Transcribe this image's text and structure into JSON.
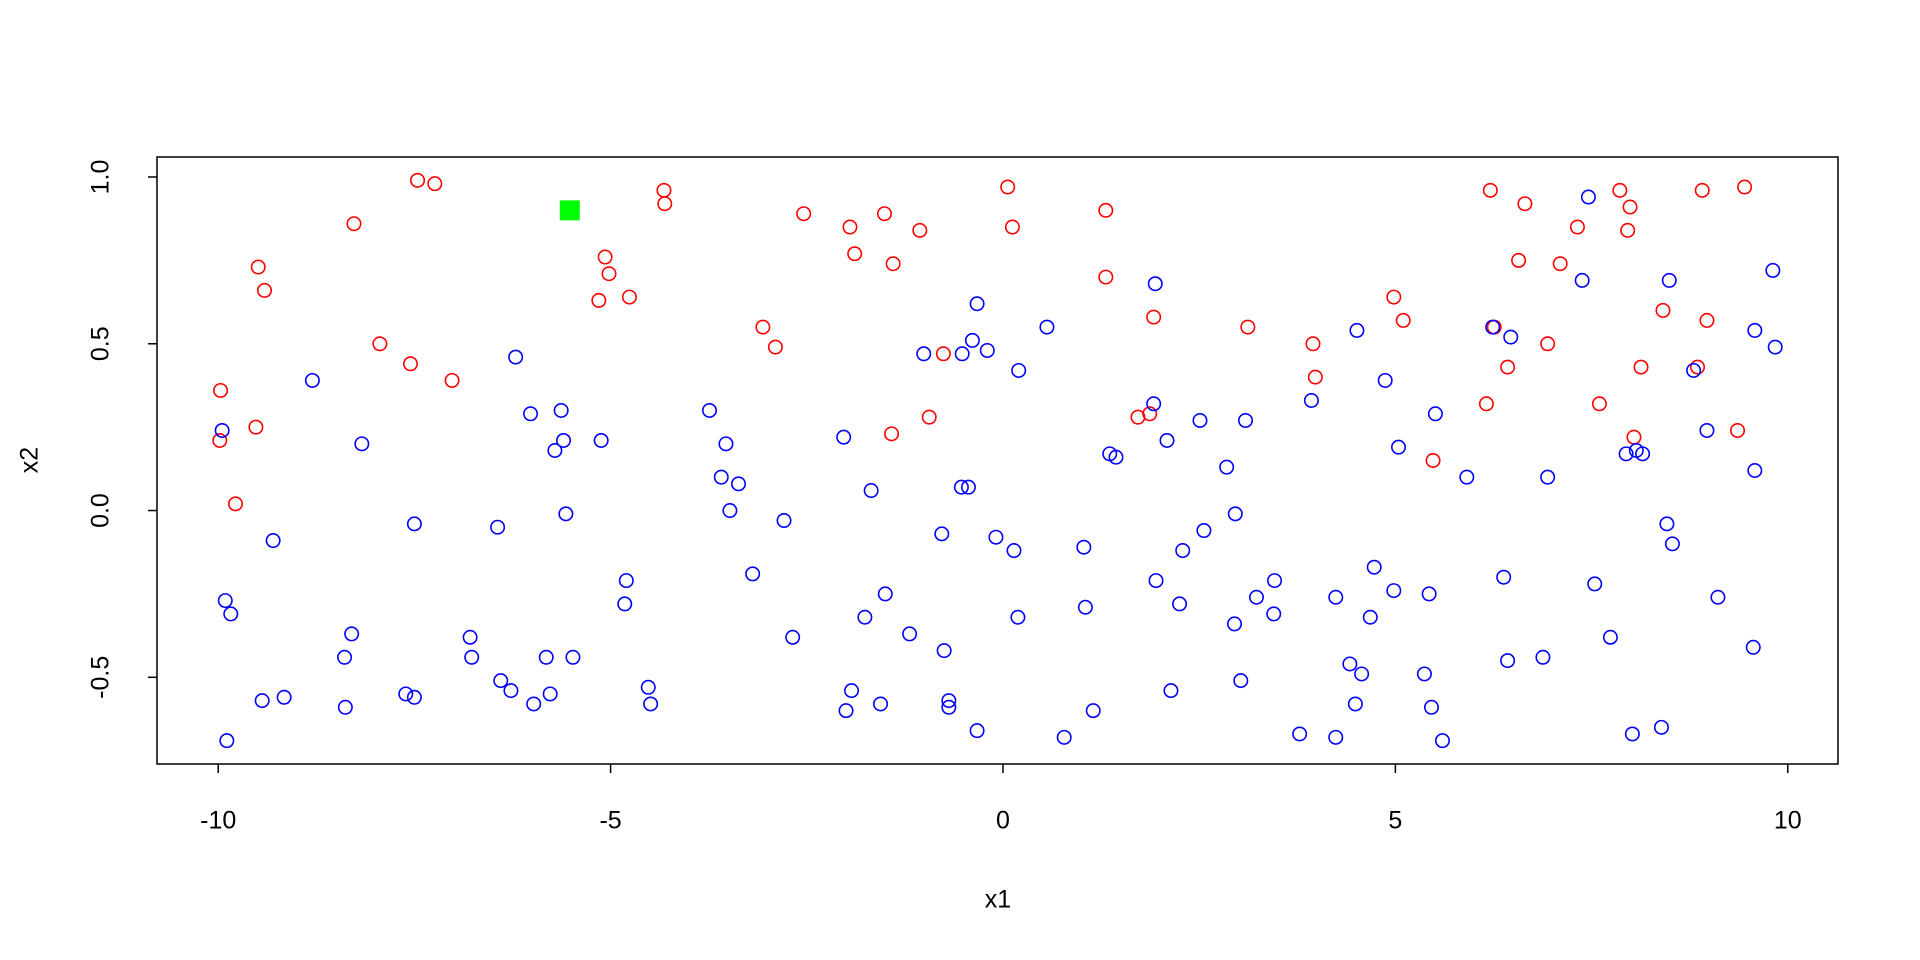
{
  "chart_data": {
    "type": "scatter",
    "xlabel": "x1",
    "ylabel": "x2",
    "xlim": [
      -10.78,
      10.64
    ],
    "ylim": [
      -0.76,
      1.06
    ],
    "xticks": [
      -10,
      -5,
      0,
      5,
      10
    ],
    "yticks": [
      -0.5,
      {
        "value": 0,
        "label": "0.0"
      },
      0.5,
      {
        "value": 1,
        "label": "1.0"
      }
    ],
    "series": [
      {
        "color": "#ff0000",
        "marker": "circle",
        "x": [
          -9.97,
          -9.98,
          -9.78,
          -9.49,
          -9.41,
          -9.52,
          -8.27,
          -7.94,
          -7.55,
          -7.46,
          -7.24,
          -7.02,
          -5.07,
          -5.02,
          -5.15,
          -4.76,
          -4.32,
          -4.31,
          -3.06,
          -2.9,
          -2.54,
          -1.95,
          -1.89,
          -1.51,
          -1.4,
          -1.06,
          -1.42,
          -0.94,
          -0.76,
          0.06,
          0.12,
          1.31,
          1.31,
          1.72,
          1.87,
          1.92,
          3.12,
          3.95,
          3.98,
          4.98,
          5.1,
          5.48,
          6.21,
          6.65,
          6.57,
          6.43,
          6.16,
          6.26,
          6.94,
          7.1,
          7.32,
          7.6,
          7.86,
          7.99,
          7.96,
          8.04,
          8.13,
          8.41,
          8.85,
          8.91,
          8.97,
          9.36,
          9.45
        ],
        "y": [
          0.36,
          0.21,
          0.02,
          0.73,
          0.66,
          0.25,
          0.86,
          0.5,
          0.44,
          0.99,
          0.98,
          0.39,
          0.76,
          0.71,
          0.63,
          0.64,
          0.96,
          0.92,
          0.55,
          0.49,
          0.89,
          0.85,
          0.77,
          0.89,
          0.74,
          0.84,
          0.23,
          0.28,
          0.47,
          0.97,
          0.85,
          0.9,
          0.7,
          0.28,
          0.29,
          0.58,
          0.55,
          0.5,
          0.4,
          0.64,
          0.57,
          0.15,
          0.96,
          0.92,
          0.75,
          0.43,
          0.32,
          0.55,
          0.5,
          0.74,
          0.85,
          0.32,
          0.96,
          0.91,
          0.84,
          0.22,
          0.43,
          0.6,
          0.43,
          0.96,
          0.57,
          0.24,
          0.97
        ]
      },
      {
        "color": "#0000ff",
        "marker": "circle",
        "x": [
          -9.95,
          -9.89,
          -9.91,
          -9.84,
          -9.3,
          -9.44,
          -9.16,
          -8.8,
          -8.39,
          -8.3,
          -8.38,
          -8.17,
          -7.61,
          -7.5,
          -7.5,
          -6.79,
          -6.77,
          -6.44,
          -6.4,
          -6.27,
          -6.21,
          -6.02,
          -5.98,
          -5.82,
          -5.77,
          -5.71,
          -5.63,
          -5.6,
          -5.57,
          -5.48,
          -5.12,
          -4.8,
          -4.82,
          -4.52,
          -4.49,
          -3.74,
          -3.53,
          -3.59,
          -3.37,
          -3.48,
          -3.19,
          -2.79,
          -2.68,
          -2.03,
          -1.68,
          -1.93,
          -2.0,
          -1.76,
          -1.56,
          -1.5,
          -1.19,
          -1.01,
          -0.78,
          -0.75,
          -0.69,
          -0.69,
          -0.52,
          -0.53,
          -0.44,
          -0.39,
          -0.33,
          -0.33,
          -0.2,
          -0.09,
          0.14,
          0.19,
          0.2,
          0.56,
          0.78,
          1.03,
          1.05,
          1.15,
          1.36,
          1.44,
          1.92,
          1.94,
          1.95,
          2.09,
          2.14,
          2.25,
          2.29,
          2.51,
          2.56,
          2.85,
          2.96,
          2.95,
          3.03,
          3.09,
          3.23,
          3.46,
          3.45,
          3.78,
          3.93,
          4.24,
          4.24,
          4.42,
          4.49,
          4.51,
          4.57,
          4.68,
          4.73,
          4.87,
          4.98,
          5.04,
          5.37,
          5.43,
          5.46,
          5.51,
          5.6,
          5.91,
          6.24,
          6.38,
          6.43,
          6.47,
          6.88,
          6.94,
          7.38,
          7.46,
          7.54,
          7.74,
          7.94,
          8.07,
          8.15,
          8.02,
          8.39,
          8.46,
          8.53,
          8.49,
          8.8,
          8.97,
          9.11,
          9.56,
          9.58,
          9.58,
          9.81,
          9.84
        ],
        "y": [
          0.24,
          -0.69,
          -0.27,
          -0.31,
          -0.09,
          -0.57,
          -0.56,
          0.39,
          -0.44,
          -0.37,
          -0.59,
          0.2,
          -0.55,
          -0.56,
          -0.04,
          -0.38,
          -0.44,
          -0.05,
          -0.51,
          -0.54,
          0.46,
          0.29,
          -0.58,
          -0.44,
          -0.55,
          0.18,
          0.3,
          0.21,
          -0.01,
          -0.44,
          0.21,
          -0.21,
          -0.28,
          -0.53,
          -0.58,
          0.3,
          0.2,
          0.1,
          0.08,
          0.0,
          -0.19,
          -0.03,
          -0.38,
          0.22,
          0.06,
          -0.54,
          -0.6,
          -0.32,
          -0.58,
          -0.25,
          -0.37,
          0.47,
          -0.07,
          -0.42,
          -0.57,
          -0.59,
          0.47,
          0.07,
          0.07,
          0.51,
          0.62,
          -0.66,
          0.48,
          -0.08,
          -0.12,
          -0.32,
          0.42,
          0.55,
          -0.68,
          -0.11,
          -0.29,
          -0.6,
          0.17,
          0.16,
          0.32,
          0.68,
          -0.21,
          0.21,
          -0.54,
          -0.28,
          -0.12,
          0.27,
          -0.06,
          0.13,
          -0.01,
          -0.34,
          -0.51,
          0.27,
          -0.26,
          -0.21,
          -0.31,
          -0.67,
          0.33,
          -0.26,
          -0.68,
          -0.46,
          -0.58,
          0.54,
          -0.49,
          -0.32,
          -0.17,
          0.39,
          -0.24,
          0.19,
          -0.49,
          -0.25,
          -0.59,
          0.29,
          -0.69,
          0.1,
          0.55,
          -0.2,
          -0.45,
          0.52,
          -0.44,
          0.1,
          0.69,
          0.94,
          -0.22,
          -0.38,
          0.17,
          0.18,
          0.17,
          -0.67,
          -0.65,
          -0.04,
          -0.1,
          0.69,
          0.42,
          0.24,
          -0.26,
          -0.41,
          0.12,
          0.54,
          0.72,
          0.49
        ]
      },
      {
        "color": "#00ff00",
        "marker": "square",
        "x": [
          -5.52
        ],
        "y": [
          0.9
        ]
      }
    ]
  }
}
